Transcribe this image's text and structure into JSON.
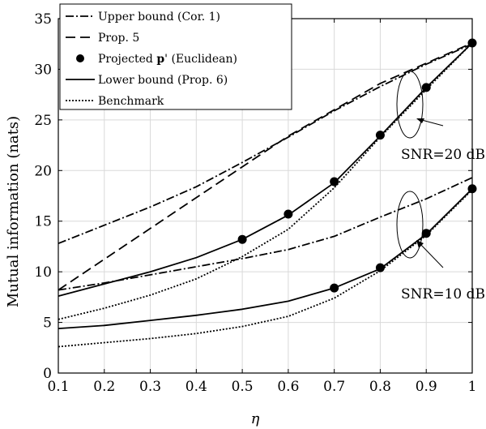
{
  "chart_data": {
    "type": "line",
    "xlabel": "η",
    "ylabel": "Mutual information (nats)",
    "xlim": [
      0.1,
      1
    ],
    "ylim": [
      0,
      35
    ],
    "xticks": [
      "0.1",
      "0.2",
      "0.3",
      "0.4",
      "0.5",
      "0.6",
      "0.7",
      "0.8",
      "0.9",
      "1"
    ],
    "yticks": [
      "0",
      "5",
      "10",
      "15",
      "20",
      "25",
      "30",
      "35"
    ],
    "grid": true,
    "legend_position": "top-left",
    "legend": [
      {
        "label": "Upper bound (Cor. 1)",
        "style": "dashdot"
      },
      {
        "label": "Prop. 5",
        "style": "dashed"
      },
      {
        "label": "Projected ",
        "bold": "p",
        "suffix": "' (Euclidean)",
        "style": "marker"
      },
      {
        "label": "Lower bound (Prop. 6)",
        "style": "solid"
      },
      {
        "label": "Benchmark",
        "style": "dotted"
      }
    ],
    "annotations": [
      "SNR=20 dB",
      "SNR=10 dB"
    ],
    "x": [
      0.1,
      0.2,
      0.3,
      0.4,
      0.5,
      0.6,
      0.7,
      0.8,
      0.9,
      1.0
    ],
    "series": [
      {
        "name": "Upper bound (Cor. 1)",
        "snr": "20 dB",
        "style": "dashdot",
        "values": [
          12.8,
          14.6,
          16.4,
          18.4,
          20.8,
          23.3,
          25.9,
          28.3,
          30.5,
          32.5
        ]
      },
      {
        "name": "Prop. 5",
        "snr": "20 dB",
        "style": "dashed",
        "values": [
          null,
          null,
          null,
          null,
          null,
          null,
          null,
          null,
          null,
          null
        ],
        "points": [
          [
            0.1,
            8.2
          ],
          [
            0.6,
            23.4
          ],
          [
            0.8,
            28.6
          ],
          [
            1.0,
            32.6
          ]
        ]
      },
      {
        "name": "Lower bound (Prop. 6)",
        "snr": "20 dB",
        "style": "solid",
        "values": [
          7.6,
          8.8,
          10.0,
          11.4,
          13.2,
          15.6,
          18.8,
          23.4,
          28.2,
          32.6
        ]
      },
      {
        "name": "Benchmark",
        "snr": "20 dB",
        "style": "dotted",
        "values": [
          5.3,
          6.4,
          7.7,
          9.3,
          11.5,
          14.2,
          18.3,
          23.3,
          28.0,
          32.6
        ]
      },
      {
        "name": "Projected p' (Euclidean)",
        "snr": "20 dB",
        "style": "marker",
        "points": [
          [
            0.5,
            13.2
          ],
          [
            0.6,
            15.7
          ],
          [
            0.7,
            18.9
          ],
          [
            0.8,
            23.5
          ],
          [
            0.9,
            28.2
          ],
          [
            1.0,
            32.6
          ]
        ]
      },
      {
        "name": "Upper bound (Cor. 1)",
        "snr": "10 dB",
        "style": "dashdot",
        "values": [
          8.2,
          8.9,
          9.7,
          10.5,
          11.3,
          12.2,
          13.5,
          15.4,
          17.2,
          19.3
        ]
      },
      {
        "name": "Lower bound (Prop. 6)",
        "snr": "10 dB",
        "style": "solid",
        "values": [
          4.4,
          4.7,
          5.2,
          5.7,
          6.3,
          7.1,
          8.4,
          10.3,
          13.7,
          18.2
        ]
      },
      {
        "name": "Benchmark",
        "snr": "10 dB",
        "style": "dotted",
        "values": [
          2.6,
          3.0,
          3.4,
          3.9,
          4.6,
          5.6,
          7.4,
          10.1,
          13.6,
          18.1
        ]
      },
      {
        "name": "Projected p' (Euclidean)",
        "snr": "10 dB",
        "style": "marker",
        "points": [
          [
            0.7,
            8.4
          ],
          [
            0.8,
            10.4
          ],
          [
            0.9,
            13.8
          ],
          [
            1.0,
            18.2
          ]
        ]
      }
    ]
  }
}
